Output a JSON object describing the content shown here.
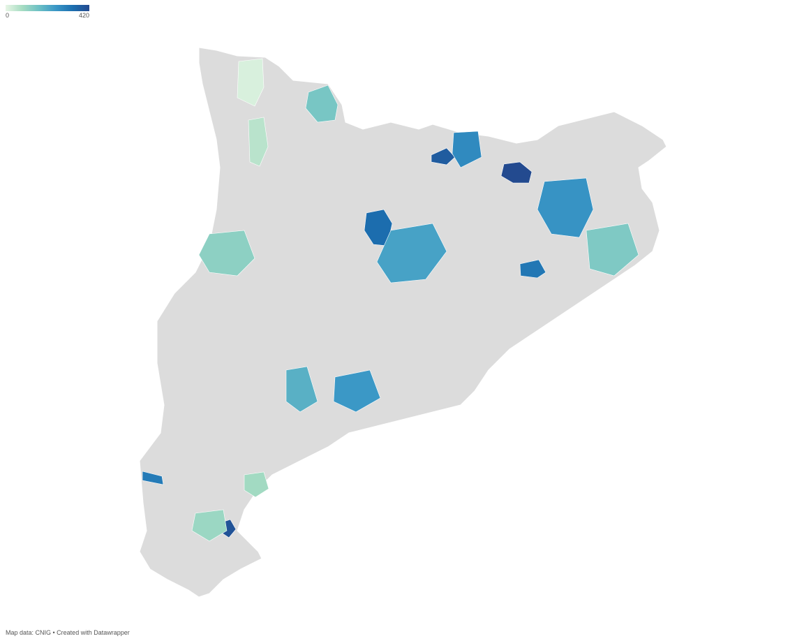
{
  "legend": {
    "min": 0,
    "max": 420,
    "colors": [
      "#e8f6e6",
      "#a6dcc2",
      "#6cc0c5",
      "#3a97c6",
      "#1c6fb0",
      "#234a8f"
    ]
  },
  "regions": [
    {
      "value": 420
    },
    {
      "value": 400
    },
    {
      "value": 340
    },
    {
      "value": 320
    },
    {
      "value": 310
    },
    {
      "value": 380
    },
    {
      "value": 150
    },
    {
      "value": 60
    },
    {
      "value": 20
    },
    {
      "value": 230
    },
    {
      "value": 260
    },
    {
      "value": 120
    },
    {
      "value": 90
    },
    {
      "value": 250
    },
    {
      "value": 200
    },
    {
      "value": 140
    },
    {
      "value": 280
    },
    {
      "value": 100
    }
  ],
  "footer": "Map data: CNIG  • Created with Datawrapper"
}
